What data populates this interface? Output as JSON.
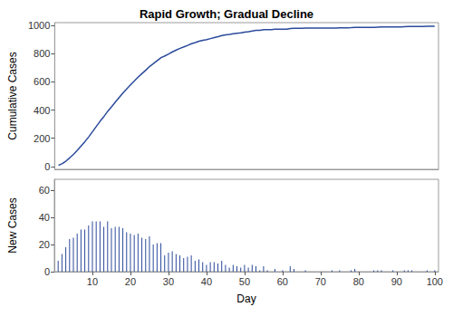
{
  "chart_data": [
    {
      "type": "line",
      "title": "Rapid Growth; Gradual Decline",
      "ylabel": "Cumulative Cases",
      "x": [
        1,
        2,
        3,
        4,
        5,
        6,
        7,
        8,
        9,
        10,
        11,
        12,
        13,
        14,
        15,
        16,
        17,
        18,
        19,
        20,
        21,
        22,
        23,
        24,
        25,
        26,
        27,
        28,
        29,
        30,
        31,
        32,
        33,
        34,
        35,
        36,
        37,
        38,
        39,
        40,
        41,
        42,
        43,
        44,
        45,
        46,
        47,
        48,
        49,
        50,
        51,
        52,
        53,
        54,
        55,
        56,
        57,
        58,
        59,
        60,
        61,
        62,
        63,
        64,
        65,
        66,
        67,
        68,
        69,
        70,
        71,
        72,
        73,
        74,
        75,
        76,
        77,
        78,
        79,
        80,
        81,
        82,
        83,
        84,
        85,
        86,
        87,
        88,
        89,
        90,
        91,
        92,
        93,
        94,
        95,
        96,
        97,
        98,
        99,
        100
      ],
      "values": [
        8,
        21,
        39,
        63,
        88,
        116,
        147,
        178,
        212,
        249,
        286,
        323,
        356,
        393,
        425,
        458,
        491,
        523,
        552,
        580,
        607,
        635,
        660,
        684,
        710,
        730,
        751,
        772,
        784,
        798,
        813,
        826,
        838,
        848,
        859,
        871,
        879,
        888,
        895,
        900,
        907,
        914,
        920,
        928,
        933,
        936,
        941,
        945,
        948,
        953,
        956,
        961,
        965,
        966,
        970,
        971,
        971,
        973,
        973,
        974,
        974,
        978,
        980,
        980,
        980,
        981,
        981,
        981,
        981,
        981,
        981,
        981,
        982,
        982,
        983,
        983,
        983,
        984,
        986,
        986,
        986,
        986,
        986,
        987,
        988,
        989,
        989,
        989,
        990,
        990,
        990,
        991,
        992,
        993,
        993,
        993,
        993,
        994,
        994,
        995
      ],
      "color": "#2b4a9b",
      "xlim": [
        0,
        101
      ],
      "ylim": [
        -20,
        1020
      ],
      "yticks": [
        0,
        200,
        400,
        600,
        800,
        1000
      ],
      "tick_labels": "y",
      "grid": false
    },
    {
      "type": "bar",
      "xlabel": "Day",
      "ylabel": "New Cases",
      "x": [
        1,
        2,
        3,
        4,
        5,
        6,
        7,
        8,
        9,
        10,
        11,
        12,
        13,
        14,
        15,
        16,
        17,
        18,
        19,
        20,
        21,
        22,
        23,
        24,
        25,
        26,
        27,
        28,
        29,
        30,
        31,
        32,
        33,
        34,
        35,
        36,
        37,
        38,
        39,
        40,
        41,
        42,
        43,
        44,
        45,
        46,
        47,
        48,
        49,
        50,
        51,
        52,
        53,
        54,
        55,
        56,
        57,
        58,
        59,
        60,
        61,
        62,
        63,
        64,
        65,
        66,
        67,
        68,
        69,
        70,
        71,
        72,
        73,
        74,
        75,
        76,
        77,
        78,
        79,
        80,
        81,
        82,
        83,
        84,
        85,
        86,
        87,
        88,
        89,
        90,
        91,
        92,
        93,
        94,
        95,
        96,
        97,
        98,
        99,
        100
      ],
      "values": [
        8,
        13,
        18,
        24,
        25,
        28,
        31,
        31,
        34,
        37,
        37,
        37,
        33,
        37,
        32,
        33,
        33,
        32,
        29,
        28,
        27,
        28,
        25,
        24,
        26,
        20,
        21,
        21,
        12,
        14,
        15,
        13,
        12,
        10,
        11,
        12,
        8,
        9,
        7,
        5,
        7,
        7,
        6,
        8,
        5,
        3,
        5,
        4,
        3,
        5,
        3,
        5,
        4,
        1,
        4,
        1,
        0,
        2,
        0,
        1,
        0,
        4,
        2,
        0,
        0,
        1,
        0,
        0,
        0,
        0,
        0,
        0,
        1,
        0,
        1,
        0,
        0,
        1,
        2,
        0,
        0,
        0,
        0,
        1,
        1,
        1,
        0,
        0,
        1,
        0,
        0,
        1,
        1,
        1,
        0,
        0,
        0,
        1,
        0,
        1
      ],
      "color": "#2b4a9b",
      "xlim": [
        0,
        101
      ],
      "xticks": [
        10,
        20,
        30,
        40,
        50,
        60,
        70,
        80,
        90,
        100
      ],
      "ylim": [
        0,
        68
      ],
      "yticks": [
        0,
        20,
        40,
        60
      ],
      "grid": false
    }
  ]
}
